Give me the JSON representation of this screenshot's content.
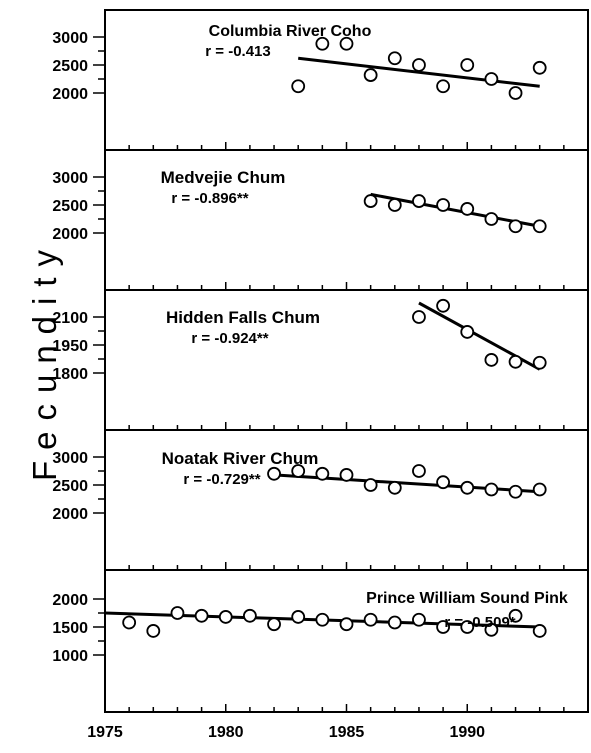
{
  "ylabel": "Fecundity",
  "x_ticks": [
    "1975",
    "1980",
    "1985",
    "1990"
  ],
  "chart_data": [
    {
      "type": "scatter",
      "title": "Columbia River Coho",
      "r_label": "r = -0.413",
      "xlim": [
        1975,
        1995
      ],
      "ylim": [
        2000,
        3200
      ],
      "y_ticks": [
        "3000",
        "2500",
        "2000"
      ],
      "x": [
        1983,
        1984,
        1985,
        1986,
        1987,
        1988,
        1989,
        1990,
        1991,
        1992,
        1993
      ],
      "y": [
        2120,
        2880,
        2880,
        2320,
        2620,
        2500,
        2120,
        2500,
        2250,
        2000,
        2450
      ],
      "trend": {
        "x": [
          1983,
          1993
        ],
        "y": [
          2620,
          2120
        ]
      }
    },
    {
      "type": "scatter",
      "title": "Medvejie Chum",
      "r_label": "r = -0.896**",
      "xlim": [
        1975,
        1995
      ],
      "ylim": [
        2000,
        3200
      ],
      "y_ticks": [
        "3000",
        "2500",
        "2000"
      ],
      "x": [
        1986,
        1987,
        1988,
        1989,
        1990,
        1991,
        1992,
        1993
      ],
      "y": [
        2570,
        2500,
        2570,
        2500,
        2430,
        2250,
        2120,
        2120
      ],
      "trend": {
        "x": [
          1986,
          1993
        ],
        "y": [
          2690,
          2120
        ]
      }
    },
    {
      "type": "scatter",
      "title": "Hidden Falls Chum",
      "r_label": "r = -0.924**",
      "xlim": [
        1975,
        1995
      ],
      "ylim": [
        1800,
        2165
      ],
      "y_ticks": [
        "2100",
        "1950",
        "1800"
      ],
      "x": [
        1988,
        1989,
        1990,
        1991,
        1992,
        1993
      ],
      "y": [
        2100,
        2160,
        2020,
        1870,
        1860,
        1855
      ],
      "trend": {
        "x": [
          1988,
          1993
        ],
        "y": [
          2175,
          1820
        ]
      }
    },
    {
      "type": "scatter",
      "title": "Noatak River Chum",
      "r_label": "r = -0.729**",
      "xlim": [
        1975,
        1995
      ],
      "ylim": [
        2000,
        3200
      ],
      "y_ticks": [
        "3000",
        "2500",
        "2000"
      ],
      "x": [
        1982,
        1983,
        1984,
        1985,
        1986,
        1987,
        1988,
        1989,
        1990,
        1991,
        1992,
        1993
      ],
      "y": [
        2700,
        2750,
        2700,
        2680,
        2500,
        2450,
        2750,
        2550,
        2450,
        2420,
        2380,
        2420
      ],
      "trend": {
        "x": [
          1982,
          1993
        ],
        "y": [
          2680,
          2380
        ]
      }
    },
    {
      "type": "scatter",
      "title": "Prince William Sound Pink",
      "r_label": "r = -0.509*",
      "xlim": [
        1975,
        1995
      ],
      "ylim": [
        1000,
        2200
      ],
      "y_ticks": [
        "2000",
        "1500",
        "1000"
      ],
      "x": [
        1976,
        1977,
        1978,
        1979,
        1980,
        1981,
        1982,
        1983,
        1984,
        1985,
        1986,
        1987,
        1988,
        1989,
        1990,
        1991,
        1992,
        1993
      ],
      "y": [
        1580,
        1430,
        1750,
        1700,
        1680,
        1700,
        1550,
        1680,
        1630,
        1550,
        1630,
        1580,
        1630,
        1500,
        1500,
        1450,
        1700,
        1430
      ],
      "trend": {
        "x": [
          1975,
          1993
        ],
        "y": [
          1750,
          1500
        ]
      }
    }
  ]
}
